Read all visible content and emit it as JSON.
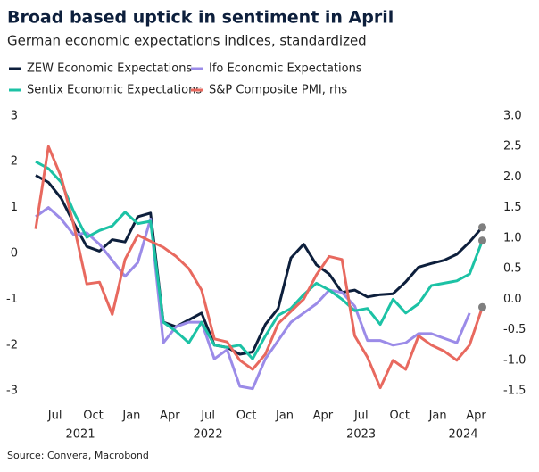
{
  "chart_data": {
    "type": "line",
    "title": "Broad based uptick in sentiment in April",
    "subtitle": "German economic expectations indices, standardized",
    "source": "Source: Convera, Macrobond",
    "categories": [
      null,
      null,
      "Jul",
      null,
      null,
      "Oct",
      null,
      null,
      "Jan",
      null,
      null,
      "Apr",
      null,
      null,
      "Jul",
      null,
      null,
      "Oct",
      null,
      null,
      "Jan",
      null,
      null,
      "Apr",
      null,
      null,
      "Jul",
      null,
      null,
      "Oct",
      null,
      null,
      "Jan",
      null,
      null,
      "Apr"
    ],
    "year_labels": [
      "2021",
      "2022",
      "2023",
      "2024"
    ],
    "ylim": [
      -3.25,
      3.25
    ],
    "yticks": [
      -3,
      -2,
      -1,
      0,
      1,
      2,
      3
    ],
    "y2lim": [
      -1.69,
      3.19
    ],
    "y2ticks": [
      {
        "value": 3,
        "label": "3.0"
      },
      2.5,
      {
        "value": 2,
        "label": "2.0"
      },
      1.5,
      {
        "value": 1,
        "label": "1.0"
      },
      0.5,
      {
        "value": 0,
        "label": "0.0"
      },
      -0.5,
      {
        "value": -1,
        "label": "-1.0"
      },
      -1.5
    ],
    "end_marker_color": "#7f7f7f",
    "series": [
      {
        "name": "ZEW Economic Expectations",
        "color": "#0d1f3c",
        "values": [
          1.7,
          1.55,
          1.2,
          0.65,
          0.15,
          0.05,
          0.3,
          0.25,
          0.8,
          0.88,
          -1.5,
          -1.6,
          -1.45,
          -1.3,
          -2.0,
          -2.05,
          -2.2,
          -2.15,
          -1.55,
          -1.2,
          -0.1,
          0.2,
          -0.25,
          -0.45,
          -0.85,
          -0.8,
          -0.95,
          -0.9,
          -0.88,
          -0.62,
          -0.3,
          -0.22,
          -0.15,
          -0.02,
          0.25,
          0.57
        ]
      },
      {
        "name": "Ifo Economic Expectations",
        "color": "#9b8be8",
        "values": [
          0.8,
          1.0,
          0.75,
          0.4,
          0.45,
          0.2,
          -0.15,
          -0.5,
          -0.2,
          0.75,
          -1.95,
          -1.6,
          -1.5,
          -1.5,
          -2.3,
          -2.1,
          -2.9,
          -2.95,
          -2.3,
          -1.9,
          -1.5,
          -1.3,
          -1.1,
          -0.8,
          -0.85,
          -1.15,
          -1.9,
          -1.9,
          -2.0,
          -1.95,
          -1.75,
          -1.75,
          -1.85,
          -1.95,
          -1.3,
          null
        ]
      },
      {
        "name": "Sentix Economic Expectations",
        "color": "#1cc2a5",
        "values": [
          2.0,
          1.85,
          1.55,
          0.9,
          0.35,
          0.5,
          0.6,
          0.9,
          0.65,
          0.7,
          -1.5,
          -1.7,
          -1.95,
          -1.5,
          -2.0,
          -2.05,
          -2.0,
          -2.3,
          -1.8,
          -1.35,
          -1.2,
          -0.9,
          -0.65,
          -0.8,
          -1.0,
          -1.25,
          -1.2,
          -1.55,
          -1.0,
          -1.3,
          -1.1,
          -0.7,
          -0.65,
          -0.6,
          -0.45,
          0.28
        ]
      },
      {
        "name": "S&P Composite PMI, rhs",
        "color": "#e8695f",
        "axis": "y2",
        "values": [
          1.15,
          2.5,
          2.0,
          1.2,
          0.25,
          0.28,
          -0.25,
          0.65,
          1.05,
          0.95,
          0.85,
          0.7,
          0.5,
          0.15,
          -0.65,
          -0.7,
          -1.0,
          -1.15,
          -0.9,
          -0.4,
          -0.2,
          0.0,
          0.4,
          0.7,
          0.65,
          -0.6,
          -0.95,
          -1.45,
          -1.0,
          -1.15,
          -0.6,
          -0.75,
          -0.85,
          -1.0,
          -0.75,
          -0.13
        ]
      }
    ]
  }
}
